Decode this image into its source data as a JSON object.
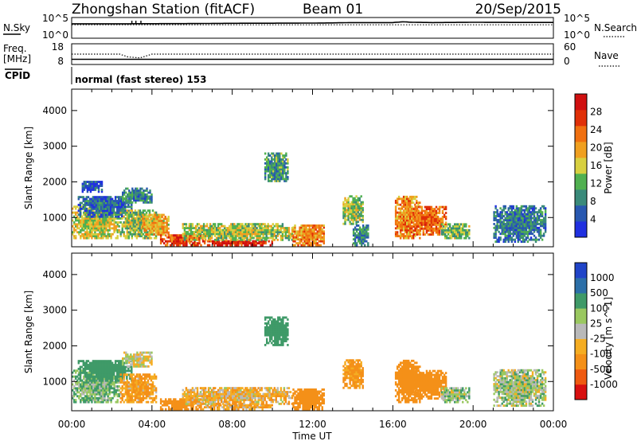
{
  "header": {
    "station": "Zhongshan Station (fitACF)",
    "beam": "Beam 01",
    "date": "20/Sep/2015"
  },
  "summary_panels": {
    "nsky_label": "N.Sky",
    "nsky_ticks": [
      "10^5",
      "10^0"
    ],
    "nsearch_label": "N.Search",
    "nsearch_ticks": [
      "10^5",
      "10^0"
    ],
    "freq_label_1": "Freq.",
    "freq_label_2": "[MHz]",
    "freq_ticks": [
      "18",
      "8"
    ],
    "nave_label": "Nave",
    "nave_ticks": [
      "60",
      "0"
    ],
    "cpid_label": "CPID",
    "cpid_text": "normal (fast stereo) 153"
  },
  "colors": {
    "power_scale": [
      "#2030e0",
      "#2858b0",
      "#3a8a7a",
      "#50b050",
      "#d8d040",
      "#f0a020",
      "#f07010",
      "#e03008",
      "#d01010"
    ],
    "velocity_scale": [
      "#d81010",
      "#ef5a10",
      "#f49018",
      "#f5ad22",
      "#b9b9b9",
      "#9ac860",
      "#3f9a68",
      "#2c6fa8",
      "#2044c8"
    ]
  },
  "chart_data": [
    {
      "type": "line",
      "title": "",
      "xlabel": "Time UT",
      "ylabel": "N.Sky",
      "x_ticks": [
        "00:00",
        "04:00",
        "08:00",
        "12:00",
        "16:00",
        "20:00",
        "00:00"
      ],
      "xlim_hours": [
        0,
        24
      ],
      "y_scale": "log",
      "ylim": [
        1,
        100000
      ],
      "series": [
        {
          "name": "N.Sky",
          "x": [
            0,
            2,
            4,
            6,
            8,
            10,
            12,
            13,
            14,
            16,
            16.5,
            17,
            18,
            20,
            22,
            24
          ],
          "values": [
            3000,
            3000,
            3200,
            3400,
            4000,
            4200,
            4500,
            5000,
            6000,
            6000,
            9000,
            7000,
            6000,
            7000,
            6500,
            6500
          ]
        },
        {
          "name": "N.Search",
          "x": [
            0,
            4,
            8,
            12,
            16,
            20,
            24
          ],
          "values": [
            1800,
            1800,
            1800,
            1800,
            1800,
            1800,
            1800
          ]
        }
      ]
    },
    {
      "type": "line",
      "title": "",
      "xlabel": "Time UT",
      "ylabel": "Freq. [MHz]",
      "x_ticks": [
        "00:00",
        "04:00",
        "08:00",
        "12:00",
        "16:00",
        "20:00",
        "00:00"
      ],
      "xlim_hours": [
        0,
        24
      ],
      "ylim": [
        8,
        18
      ],
      "secondary_ylim": [
        0,
        60
      ],
      "series": [
        {
          "name": "Freq.",
          "x": [
            0,
            24
          ],
          "values": [
            10.5,
            10.5
          ]
        },
        {
          "name": "Nave",
          "x": [
            0,
            2.4,
            2.8,
            3.4,
            4.0,
            24
          ],
          "values": [
            30,
            30,
            22,
            19,
            30,
            30
          ]
        }
      ]
    },
    {
      "type": "heatmap",
      "title": "",
      "xlabel": "Time UT",
      "ylabel": "Slant Range [km]",
      "colorbar_label": "Power [dB]",
      "colorbar_ticks": [
        "28",
        "24",
        "20",
        "16",
        "12",
        "8",
        "4"
      ],
      "clim": [
        0,
        30
      ],
      "y_ticks": [
        "1000",
        "2000",
        "3000",
        "4000"
      ],
      "ylim": [
        180,
        4600
      ],
      "x_ticks": [
        "00:00",
        "04:00",
        "08:00",
        "12:00",
        "16:00",
        "20:00",
        "00:00"
      ],
      "xlim_hours": [
        0,
        24
      ],
      "grid": false,
      "regions": [
        {
          "t": [
            0.0,
            2.4
          ],
          "r": [
            400,
            1300
          ],
          "v": 15
        },
        {
          "t": [
            0.3,
            3.0
          ],
          "r": [
            1000,
            1600
          ],
          "v": 6
        },
        {
          "t": [
            0.5,
            1.5
          ],
          "r": [
            1700,
            2000
          ],
          "v": 5
        },
        {
          "t": [
            2.4,
            4.2
          ],
          "r": [
            400,
            1200
          ],
          "v": 13
        },
        {
          "t": [
            2.5,
            4.0
          ],
          "r": [
            1400,
            1800
          ],
          "v": 8
        },
        {
          "t": [
            3.5,
            4.8
          ],
          "r": [
            500,
            1100
          ],
          "v": 18
        },
        {
          "t": [
            4.4,
            6.5
          ],
          "r": [
            200,
            520
          ],
          "v": 24
        },
        {
          "t": [
            6.5,
            10.0
          ],
          "r": [
            200,
            340
          ],
          "v": 27
        },
        {
          "t": [
            5.5,
            11.0
          ],
          "r": [
            350,
            800
          ],
          "v": 14
        },
        {
          "t": [
            9.6,
            10.8
          ],
          "r": [
            2000,
            2800
          ],
          "v": 9
        },
        {
          "t": [
            11.0,
            12.6
          ],
          "r": [
            200,
            800
          ],
          "v": 20
        },
        {
          "t": [
            13.5,
            14.5
          ],
          "r": [
            800,
            1600
          ],
          "v": 13
        },
        {
          "t": [
            14.0,
            14.8
          ],
          "r": [
            200,
            800
          ],
          "v": 8
        },
        {
          "t": [
            16.1,
            17.3
          ],
          "r": [
            400,
            1600
          ],
          "v": 20
        },
        {
          "t": [
            17.0,
            18.6
          ],
          "r": [
            500,
            1300
          ],
          "v": 22
        },
        {
          "t": [
            18.4,
            19.8
          ],
          "r": [
            400,
            800
          ],
          "v": 12
        },
        {
          "t": [
            21.0,
            23.6
          ],
          "r": [
            300,
            1300
          ],
          "v": 7
        }
      ]
    },
    {
      "type": "heatmap",
      "title": "",
      "xlabel": "Time UT",
      "ylabel": "Slant Range [km]",
      "colorbar_label": "Velocity [m s^-1]",
      "colorbar_ticks": [
        "1000",
        "500",
        "100",
        "25",
        "-25",
        "-100",
        "-500",
        "-1000"
      ],
      "clim": [
        -1000,
        1000
      ],
      "y_ticks": [
        "1000",
        "2000",
        "3000",
        "4000"
      ],
      "ylim": [
        180,
        4600
      ],
      "x_ticks": [
        "00:00",
        "04:00",
        "08:00",
        "12:00",
        "16:00",
        "20:00",
        "00:00"
      ],
      "xlim_hours": [
        0,
        24
      ],
      "grid": false,
      "regions": [
        {
          "t": [
            0.0,
            2.4
          ],
          "r": [
            400,
            1300
          ],
          "v": 80
        },
        {
          "t": [
            0.3,
            3.0
          ],
          "r": [
            1000,
            1600
          ],
          "v": 300
        },
        {
          "t": [
            2.4,
            4.2
          ],
          "r": [
            400,
            1200
          ],
          "v": -120
        },
        {
          "t": [
            2.5,
            4.0
          ],
          "r": [
            1400,
            1800
          ],
          "v": 0
        },
        {
          "t": [
            4.4,
            6.5
          ],
          "r": [
            200,
            520
          ],
          "v": -200
        },
        {
          "t": [
            6.5,
            10.0
          ],
          "r": [
            200,
            340
          ],
          "v": -80
        },
        {
          "t": [
            5.5,
            11.0
          ],
          "r": [
            350,
            800
          ],
          "v": -60
        },
        {
          "t": [
            9.6,
            10.8
          ],
          "r": [
            2000,
            2800
          ],
          "v": 400
        },
        {
          "t": [
            11.0,
            12.6
          ],
          "r": [
            200,
            800
          ],
          "v": -200
        },
        {
          "t": [
            13.5,
            14.5
          ],
          "r": [
            800,
            1600
          ],
          "v": -150
        },
        {
          "t": [
            16.1,
            17.3
          ],
          "r": [
            400,
            1600
          ],
          "v": -300
        },
        {
          "t": [
            17.0,
            18.6
          ],
          "r": [
            500,
            1300
          ],
          "v": -200
        },
        {
          "t": [
            18.4,
            19.8
          ],
          "r": [
            400,
            800
          ],
          "v": 60
        },
        {
          "t": [
            21.0,
            23.6
          ],
          "r": [
            300,
            1300
          ],
          "v": 40
        }
      ]
    }
  ]
}
